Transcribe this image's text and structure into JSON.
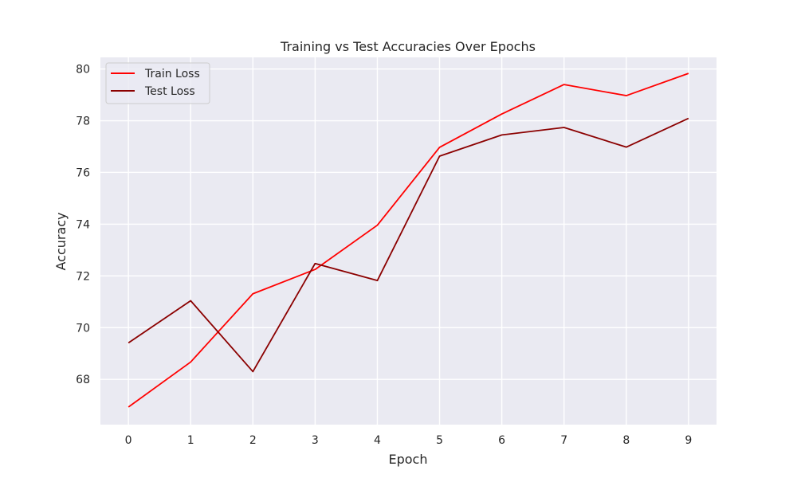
{
  "chart_data": {
    "type": "line",
    "title": "Training vs Test Accuracies Over Epochs",
    "xlabel": "Epoch",
    "ylabel": "Accuracy",
    "x": [
      0,
      1,
      2,
      3,
      4,
      5,
      6,
      7,
      8,
      9
    ],
    "xlim": [
      -0.45,
      9.45
    ],
    "ylim": [
      66.25,
      80.45
    ],
    "xticks": [
      0,
      1,
      2,
      3,
      4,
      5,
      6,
      7,
      8,
      9
    ],
    "yticks": [
      68,
      70,
      72,
      74,
      76,
      78,
      80
    ],
    "grid": true,
    "legend_position": "top-left",
    "background_color": "#eaeaf2",
    "series": [
      {
        "name": "Train Loss",
        "color": "#ff0000",
        "values": [
          66.93,
          68.67,
          71.31,
          72.25,
          73.96,
          76.97,
          78.26,
          79.4,
          78.97,
          79.83
        ]
      },
      {
        "name": "Test Loss",
        "color": "#8b0000",
        "values": [
          69.41,
          71.04,
          68.3,
          72.48,
          71.82,
          76.63,
          77.45,
          77.74,
          76.98,
          78.09
        ]
      }
    ]
  }
}
